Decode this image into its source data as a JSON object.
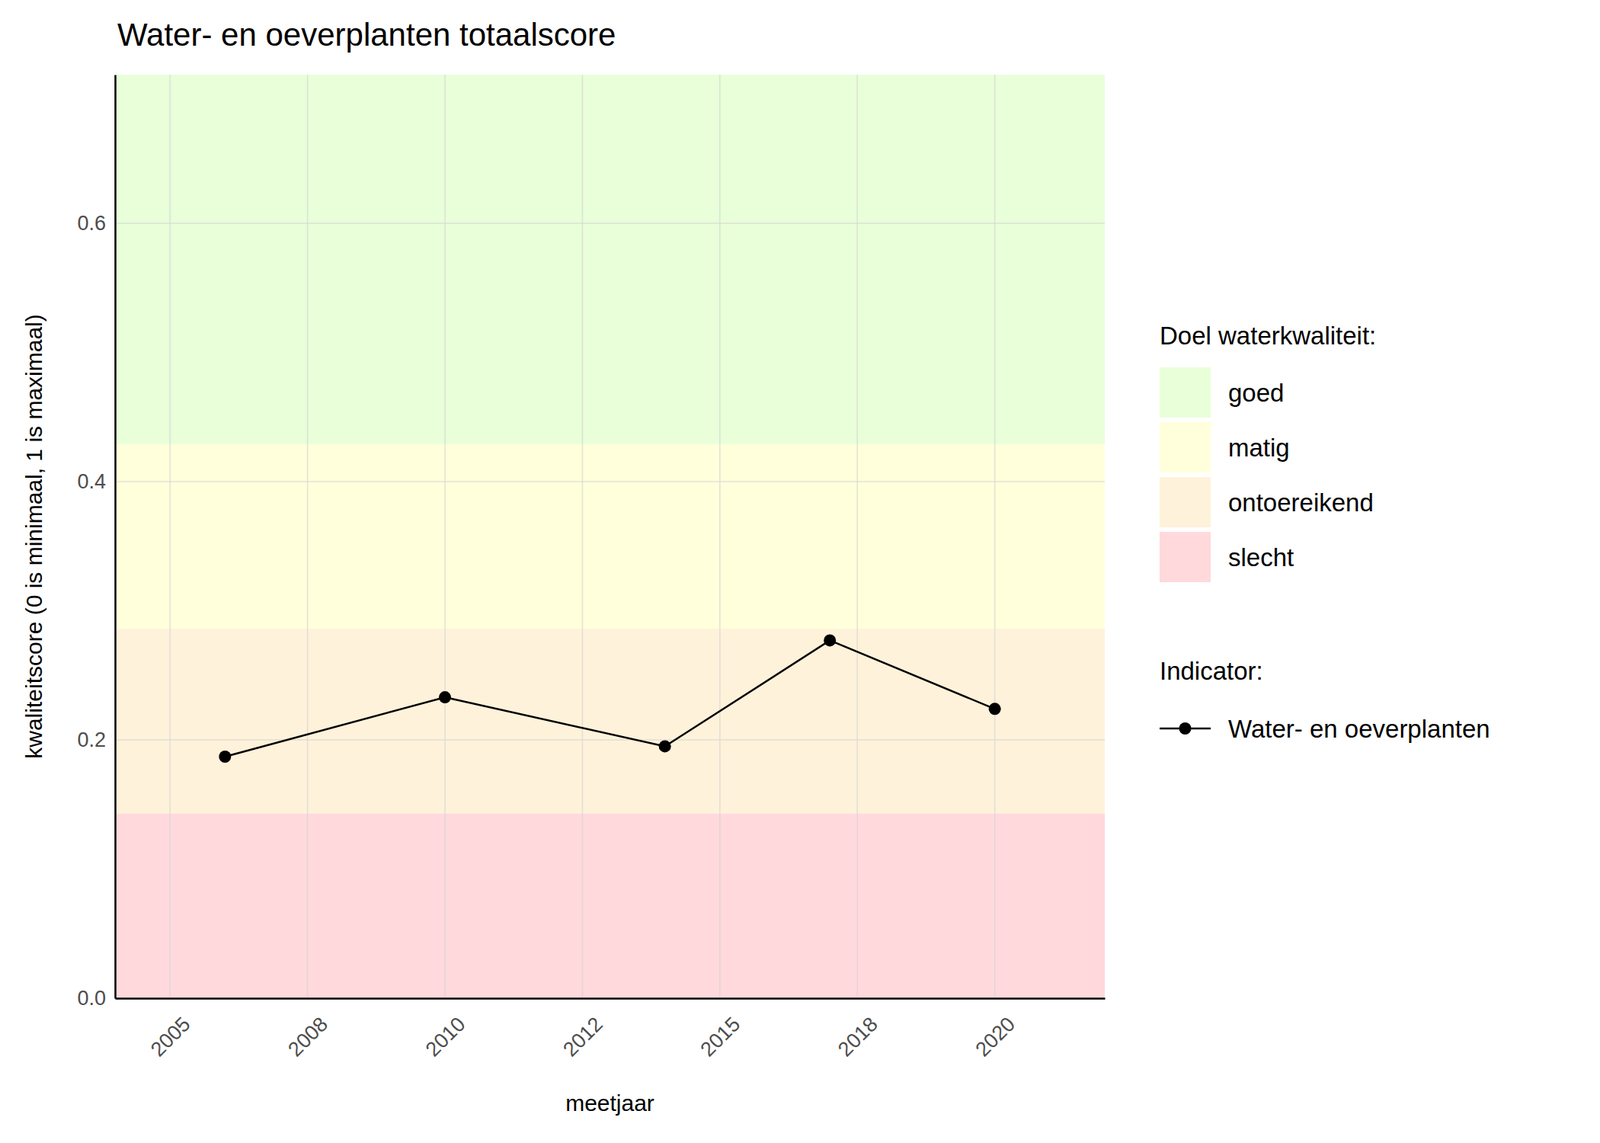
{
  "chart_data": {
    "type": "line",
    "title": "Water- en oeverplanten totaalscore",
    "x_label": "meetjaar",
    "y_label": "kwaliteitscore (0 is minimaal, 1 is maximaal)",
    "x": [
      2006,
      2010,
      2014,
      2017,
      2020
    ],
    "series": [
      {
        "name": "Water- en oeverplanten",
        "color": "#000000",
        "marker": "circle",
        "line_style": "solid",
        "values": [
          0.187,
          0.233,
          0.195,
          0.277,
          0.224
        ]
      }
    ],
    "xlim": [
      2004.0,
      2022.0
    ],
    "xticks": [
      {
        "value": 2005,
        "label": "2005"
      },
      {
        "value": 2007.5,
        "label": "2008"
      },
      {
        "value": 2010,
        "label": "2010"
      },
      {
        "value": 2012.5,
        "label": "2012"
      },
      {
        "value": 2015,
        "label": "2015"
      },
      {
        "value": 2017.5,
        "label": "2018"
      },
      {
        "value": 2020,
        "label": "2020"
      }
    ],
    "ylim": [
      0,
      0.715
    ],
    "yticks": [
      {
        "value": 0,
        "label": "0.0"
      },
      {
        "value": 0.2,
        "label": "0.2"
      },
      {
        "value": 0.4,
        "label": "0.4"
      },
      {
        "value": 0.6,
        "label": "0.6"
      }
    ],
    "grid": true,
    "band_legend_title": "Doel waterkwaliteit:",
    "series_legend_title": "Indicator:",
    "bands": [
      {
        "name": "goed",
        "from": 0.429,
        "to": 0.715,
        "color": "#e8ffd9"
      },
      {
        "name": "matig",
        "from": 0.286,
        "to": 0.429,
        "color": "#ffffdb"
      },
      {
        "name": "ontoereikend",
        "from": 0.143,
        "to": 0.286,
        "color": "#fff2da"
      },
      {
        "name": "slecht",
        "from": 0,
        "to": 0.143,
        "color": "#ffd9db"
      }
    ]
  }
}
